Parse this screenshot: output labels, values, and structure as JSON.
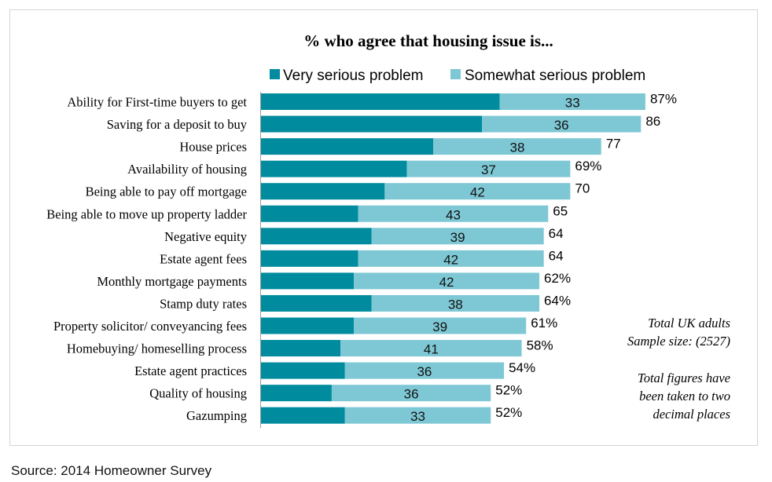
{
  "colors": {
    "very": "#008c9e",
    "somewhat": "#7ec8d5"
  },
  "source": "Source: 2014 Homeowner Survey",
  "notes": {
    "sample": [
      "Total UK adults",
      "Sample size:  (2527)"
    ],
    "rounding": [
      "Total figures have",
      "been taken to two",
      "decimal places"
    ]
  },
  "chart_data": {
    "type": "bar",
    "orientation": "horizontal",
    "stacked": true,
    "title": "% who agree that housing issue is...",
    "legend_position": "top",
    "xlim": [
      0,
      100
    ],
    "categories": [
      "Ability for First-time buyers to get",
      "Saving for a deposit to buy",
      "House prices",
      "Availability of housing",
      "Being able to pay off mortgage",
      "Being able to move up property ladder",
      "Negative equity",
      "Estate agent fees",
      "Monthly mortgage payments",
      "Stamp duty rates",
      "Property solicitor/ conveyancing fees",
      "Homebuying/ homeselling process",
      "Estate agent practices",
      "Quality of housing",
      "Gazumping"
    ],
    "series": [
      {
        "name": "Very serious problem",
        "values": [
          54,
          50,
          39,
          33,
          28,
          22,
          25,
          22,
          21,
          25,
          21,
          18,
          19,
          16,
          19
        ]
      },
      {
        "name": "Somewhat serious problem",
        "values": [
          33,
          36,
          38,
          37,
          42,
          43,
          39,
          42,
          42,
          38,
          39,
          41,
          36,
          36,
          33
        ]
      }
    ],
    "total_labels": [
      "87%",
      "86",
      "77",
      "69%",
      "70",
      "65",
      "64",
      "64",
      "62%",
      "64%",
      "61%",
      "58%",
      "54%",
      "52%",
      "52%"
    ]
  }
}
